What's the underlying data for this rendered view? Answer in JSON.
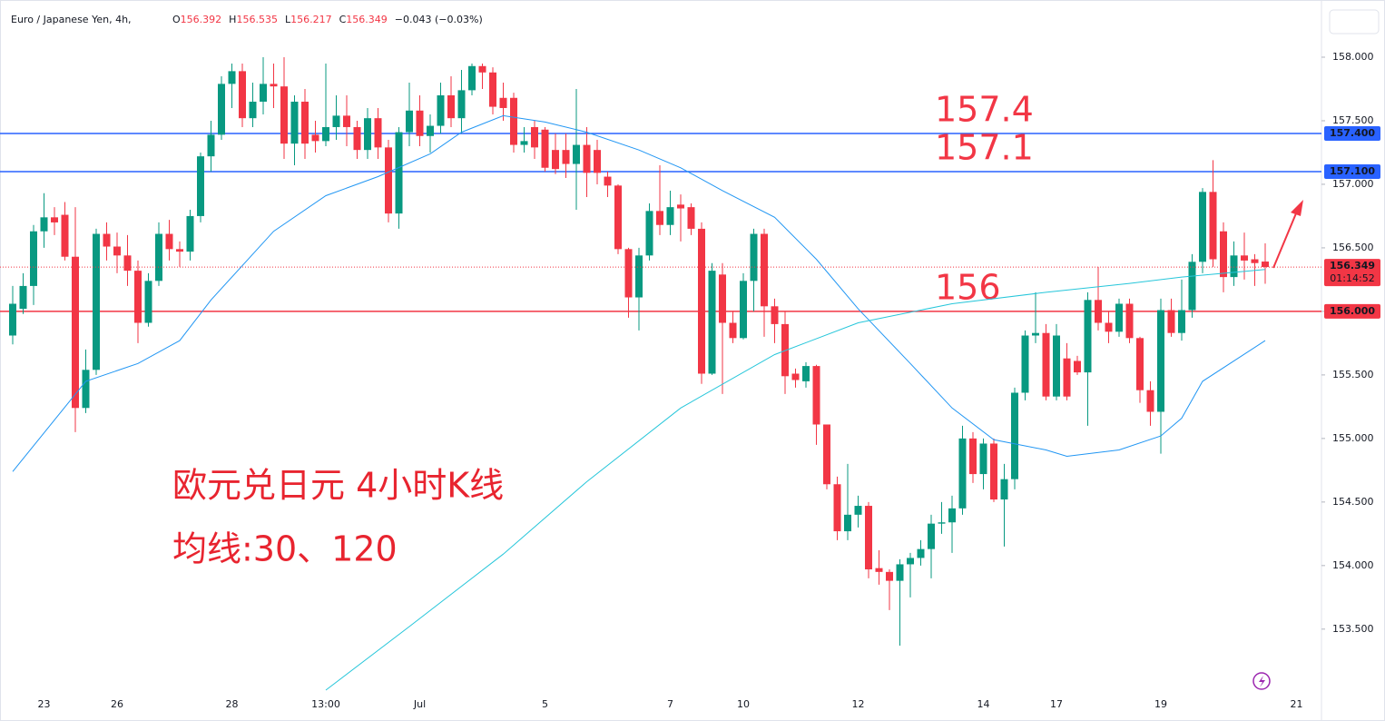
{
  "header": {
    "symbol": "Euro / Japanese Yen, 4h,",
    "ohlc": [
      {
        "label": "O",
        "value": "156.392"
      },
      {
        "label": "H",
        "value": "156.535"
      },
      {
        "label": "L",
        "value": "156.217"
      },
      {
        "label": "C",
        "value": "156.349"
      }
    ],
    "change": "−0.043 (−0.03%)"
  },
  "chart_data": {
    "type": "candlestick",
    "categories": [
      null,
      null,
      null,
      "23",
      null,
      null,
      null,
      null,
      null,
      null,
      "26",
      null,
      null,
      null,
      null,
      null,
      null,
      null,
      null,
      null,
      null,
      "28",
      null,
      null,
      null,
      null,
      null,
      null,
      null,
      null,
      "13:00",
      null,
      null,
      null,
      null,
      null,
      null,
      null,
      null,
      "Jul",
      null,
      null,
      null,
      null,
      null,
      null,
      null,
      null,
      null,
      null,
      null,
      "5",
      null,
      null,
      null,
      null,
      null,
      null,
      null,
      null,
      null,
      null,
      null,
      "7",
      null,
      null,
      null,
      null,
      null,
      null,
      "10",
      null,
      null,
      null,
      null,
      null,
      null,
      null,
      null,
      null,
      null,
      "12",
      null,
      null,
      null,
      null,
      null,
      null,
      null,
      null,
      null,
      null,
      null,
      "14",
      null,
      null,
      null,
      null,
      null,
      null,
      "17",
      null,
      null,
      null,
      null,
      null,
      null,
      null,
      null,
      null,
      "19",
      null,
      null,
      null,
      null,
      null,
      null,
      null,
      null,
      null,
      null,
      null,
      null,
      "21"
    ],
    "open": [
      155.81,
      156.02,
      156.2,
      156.63,
      156.74,
      156.76,
      156.43,
      155.24,
      155.54,
      156.61,
      156.51,
      156.44,
      156.32,
      155.91,
      156.24,
      156.61,
      156.49,
      156.47,
      156.75,
      157.22,
      157.39,
      157.79,
      157.89,
      157.52,
      157.65,
      157.79,
      157.77,
      157.32,
      157.65,
      157.39,
      157.34,
      157.45,
      157.54,
      157.45,
      157.27,
      157.52,
      157.29,
      156.77,
      157.41,
      157.58,
      157.38,
      157.46,
      157.7,
      157.52,
      157.74,
      157.93,
      157.88,
      157.68,
      157.68,
      157.31,
      157.45,
      157.43,
      157.27,
      157.27,
      157.16,
      157.31,
      157.27,
      157.06,
      156.99,
      156.49,
      156.11,
      156.44,
      156.79,
      156.68,
      156.84,
      156.82,
      156.65,
      155.51,
      156.29,
      155.91,
      155.79,
      156.24,
      156.61,
      156.04,
      155.9,
      155.51,
      155.45,
      155.57,
      155.11,
      154.64,
      154.27,
      154.4,
      154.47,
      153.98,
      153.95,
      153.88,
      154.01,
      154.06,
      154.13,
      154.33,
      154.34,
      154.45,
      155.0,
      154.72,
      154.96,
      154.52,
      154.68,
      155.36,
      155.81,
      155.83,
      155.33,
      155.63,
      155.61,
      155.52,
      156.09,
      155.91,
      155.84,
      156.06,
      155.79,
      155.38,
      155.21,
      156.01,
      155.83,
      156.01,
      156.39,
      156.94,
      156.63,
      156.27,
      156.44,
      156.41,
      156.392,
      null,
      null,
      null
    ],
    "high": [
      156.2,
      156.3,
      156.68,
      156.93,
      156.82,
      156.86,
      156.82,
      155.7,
      156.65,
      156.7,
      156.62,
      156.6,
      156.4,
      156.3,
      156.7,
      156.72,
      156.55,
      156.8,
      157.25,
      157.5,
      157.85,
      157.95,
      157.95,
      157.8,
      158.0,
      157.95,
      158.0,
      157.7,
      157.75,
      157.5,
      157.95,
      157.7,
      157.7,
      157.5,
      157.6,
      157.6,
      157.35,
      157.45,
      157.8,
      157.7,
      157.55,
      157.8,
      157.85,
      157.9,
      157.95,
      157.95,
      157.92,
      157.8,
      157.72,
      157.45,
      157.5,
      157.45,
      157.4,
      157.4,
      157.75,
      157.45,
      157.35,
      157.1,
      157.0,
      156.5,
      156.5,
      156.85,
      157.15,
      156.95,
      156.92,
      156.85,
      156.7,
      156.38,
      156.38,
      156.0,
      156.3,
      156.65,
      156.65,
      156.1,
      156.0,
      155.55,
      155.6,
      155.58,
      155.11,
      154.7,
      154.8,
      154.55,
      154.5,
      154.12,
      153.97,
      154.05,
      154.1,
      154.2,
      154.4,
      154.5,
      154.55,
      155.1,
      155.05,
      155.0,
      155.0,
      154.8,
      155.4,
      155.85,
      156.15,
      155.9,
      155.9,
      155.75,
      155.65,
      156.15,
      156.35,
      156.0,
      156.1,
      156.1,
      155.8,
      155.45,
      156.1,
      156.1,
      156.25,
      156.45,
      156.97,
      157.19,
      156.7,
      156.55,
      156.62,
      156.45,
      156.535,
      null,
      null,
      null
    ],
    "low": [
      155.74,
      155.98,
      156.05,
      156.5,
      156.6,
      156.4,
      155.05,
      155.2,
      155.5,
      156.4,
      156.3,
      156.2,
      155.75,
      155.88,
      156.2,
      156.4,
      156.35,
      156.4,
      156.7,
      157.1,
      157.35,
      157.6,
      157.45,
      157.45,
      157.55,
      157.6,
      157.2,
      157.15,
      157.2,
      157.25,
      157.3,
      157.35,
      157.3,
      157.2,
      157.2,
      157.2,
      156.7,
      156.65,
      157.3,
      157.3,
      157.25,
      157.4,
      157.45,
      157.4,
      157.7,
      157.75,
      157.55,
      157.5,
      157.25,
      157.25,
      157.2,
      157.1,
      157.08,
      157.05,
      156.8,
      156.9,
      157.0,
      156.9,
      156.45,
      155.95,
      155.85,
      156.4,
      156.6,
      156.6,
      156.55,
      156.6,
      155.43,
      155.5,
      155.35,
      155.75,
      155.78,
      156.0,
      155.8,
      155.75,
      155.35,
      155.4,
      155.4,
      154.95,
      154.6,
      154.2,
      154.2,
      154.3,
      153.9,
      153.85,
      153.65,
      153.37,
      153.75,
      154.0,
      153.9,
      154.25,
      154.1,
      154.4,
      154.65,
      154.6,
      154.5,
      154.15,
      154.6,
      155.3,
      155.75,
      155.3,
      155.3,
      155.3,
      155.5,
      155.1,
      155.85,
      155.75,
      155.8,
      155.75,
      155.28,
      155.1,
      154.88,
      155.8,
      155.77,
      155.95,
      156.3,
      156.35,
      156.15,
      156.2,
      156.25,
      156.2,
      156.217,
      null,
      null,
      null
    ],
    "close": [
      156.06,
      156.2,
      156.63,
      156.74,
      156.7,
      156.43,
      155.24,
      155.54,
      156.61,
      156.51,
      156.44,
      156.32,
      155.91,
      156.24,
      156.61,
      156.49,
      156.47,
      156.75,
      157.22,
      157.39,
      157.79,
      157.89,
      157.52,
      157.65,
      157.79,
      157.77,
      157.32,
      157.65,
      157.32,
      157.34,
      157.45,
      157.54,
      157.45,
      157.27,
      157.52,
      157.29,
      156.77,
      157.41,
      157.58,
      157.38,
      157.46,
      157.7,
      157.52,
      157.74,
      157.93,
      157.88,
      157.61,
      157.6,
      157.31,
      157.34,
      157.29,
      157.13,
      157.12,
      157.16,
      157.31,
      157.09,
      157.09,
      156.99,
      156.49,
      156.11,
      156.44,
      156.79,
      156.68,
      156.82,
      156.81,
      156.65,
      155.51,
      156.32,
      155.91,
      155.79,
      156.24,
      156.61,
      156.04,
      155.9,
      155.49,
      155.46,
      155.57,
      155.11,
      154.64,
      154.27,
      154.4,
      154.47,
      153.97,
      153.95,
      153.88,
      154.01,
      154.06,
      154.13,
      154.33,
      154.34,
      154.45,
      155.0,
      154.72,
      154.96,
      154.52,
      154.68,
      155.36,
      155.81,
      155.83,
      155.33,
      155.81,
      155.33,
      155.52,
      156.09,
      155.91,
      155.84,
      156.06,
      155.79,
      155.38,
      155.21,
      156.01,
      155.83,
      156.01,
      156.39,
      156.94,
      156.41,
      156.27,
      156.44,
      156.4,
      156.38,
      156.349,
      null,
      null,
      null
    ],
    "up_color": "#089981",
    "down_color": "#f23645",
    "lines": [
      {
        "color": "#2196f3",
        "x": [
          0,
          7,
          12,
          16,
          19,
          25,
          30,
          35,
          40,
          43,
          47,
          51,
          55,
          60,
          64,
          68,
          73,
          77,
          81,
          86,
          90,
          94,
          99,
          101,
          106,
          110,
          112,
          114,
          120
        ],
        "values": [
          154.74,
          155.45,
          155.59,
          155.77,
          156.09,
          156.63,
          156.91,
          157.06,
          157.24,
          157.41,
          157.54,
          157.49,
          157.41,
          157.27,
          157.13,
          156.95,
          156.74,
          156.41,
          156.02,
          155.59,
          155.24,
          154.99,
          154.91,
          154.86,
          154.91,
          155.02,
          155.16,
          155.45,
          155.77
        ]
      },
      {
        "color": "#26c6da",
        "x": [
          30,
          38,
          47,
          55,
          64,
          73,
          81,
          90,
          99,
          107,
          112,
          120
        ],
        "values": [
          153.02,
          153.52,
          154.09,
          154.66,
          155.24,
          155.66,
          155.91,
          156.06,
          156.15,
          156.22,
          156.27,
          156.33
        ]
      }
    ],
    "hlines": [
      {
        "value": 157.4,
        "label": "157.400",
        "annotation": "157.4",
        "color": "#2962ff"
      },
      {
        "value": 157.1,
        "label": "157.100",
        "annotation": "157.1",
        "color": "#2962ff"
      },
      {
        "value": 156,
        "label": "156.000",
        "annotation": "156",
        "color": "#f23645"
      }
    ],
    "last": {
      "value": 156.349,
      "label": "156.349",
      "countdown": "01:14:52",
      "color": "#f23645"
    },
    "annotations": [
      "欧元兑日元 4小时K线",
      "均线:30、120"
    ],
    "ylim": [
      153.02,
      158.45
    ],
    "yticks": [
      {
        "value": 153.5,
        "label": "153.500"
      },
      {
        "value": 154,
        "label": "154.000"
      },
      {
        "value": 154.5,
        "label": "154.500"
      },
      {
        "value": 155,
        "label": "155.000"
      },
      {
        "value": 155.5,
        "label": "155.500"
      },
      {
        "value": 156,
        "label": "156.000"
      },
      {
        "value": 156.5,
        "label": "156.500"
      },
      {
        "value": 157,
        "label": "157.000"
      },
      {
        "value": 157.5,
        "label": "157.500"
      },
      {
        "value": 158,
        "label": "158.000"
      }
    ],
    "grid": false
  }
}
